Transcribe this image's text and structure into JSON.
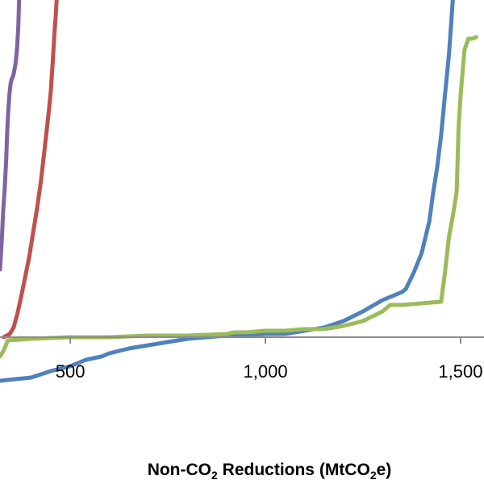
{
  "chart_data": {
    "type": "line",
    "title": "",
    "xlabel": {
      "prefix": "Non-CO",
      "sub1": "2",
      "mid": " Reductions (MtCO",
      "sub2": "2",
      "suffix": "e)"
    },
    "ylabel": "",
    "xlim": [
      320,
      1560
    ],
    "ylim": [
      -34,
      209
    ],
    "x_ticks": [
      500,
      1000,
      1500
    ],
    "x_tick_labels": [
      "500",
      "1,000",
      "1,500"
    ],
    "y_axis_crossing": 0,
    "grid": false,
    "series": [
      {
        "color": "#8064a2",
        "x": [
          320,
          322,
          325,
          328,
          332,
          336,
          338,
          341,
          344,
          347,
          350,
          352,
          355,
          360,
          364,
          367,
          369
        ],
        "y": [
          42,
          50,
          62,
          78,
          92,
          110,
          125,
          140,
          150,
          157,
          160,
          161,
          163,
          170,
          180,
          193,
          209
        ]
      },
      {
        "color": "#c0504d",
        "x": [
          330,
          345,
          355,
          365,
          375,
          385,
          395,
          405,
          415,
          425,
          435,
          445,
          450,
          455,
          460,
          463,
          465
        ],
        "y": [
          0,
          2,
          6,
          15,
          26,
          38,
          50,
          65,
          80,
          97,
          118,
          140,
          152,
          170,
          190,
          200,
          209
        ]
      },
      {
        "color": "#4f81bd",
        "x": [
          320,
          400,
          450,
          500,
          540,
          580,
          600,
          650,
          700,
          750,
          800,
          850,
          900,
          950,
          1000,
          1050,
          1100,
          1150,
          1200,
          1250,
          1300,
          1350,
          1360,
          1380,
          1400,
          1420,
          1430,
          1440,
          1450,
          1460,
          1470,
          1476,
          1480
        ],
        "y": [
          -27,
          -25,
          -21,
          -18,
          -14,
          -12,
          -10,
          -7,
          -5,
          -3,
          -1,
          0,
          1,
          1,
          2,
          2,
          4,
          6,
          10,
          16,
          23,
          28,
          30,
          40,
          52,
          72,
          90,
          105,
          125,
          150,
          175,
          195,
          209
        ]
      },
      {
        "color": "#9bbb59",
        "x": [
          320,
          330,
          340,
          400,
          500,
          600,
          700,
          800,
          900,
          920,
          950,
          1000,
          1050,
          1100,
          1150,
          1200,
          1250,
          1300,
          1320,
          1350,
          1400,
          1450,
          1460,
          1470,
          1480,
          1490,
          1495,
          1500,
          1510,
          1520,
          1530,
          1540
        ],
        "y": [
          -12,
          -8,
          -2,
          -1,
          0,
          0,
          1,
          1,
          2,
          3,
          3,
          4,
          4,
          5,
          5,
          7,
          10,
          16,
          20,
          20,
          21,
          22,
          40,
          62,
          75,
          90,
          130,
          150,
          178,
          185,
          185,
          186
        ]
      }
    ]
  }
}
